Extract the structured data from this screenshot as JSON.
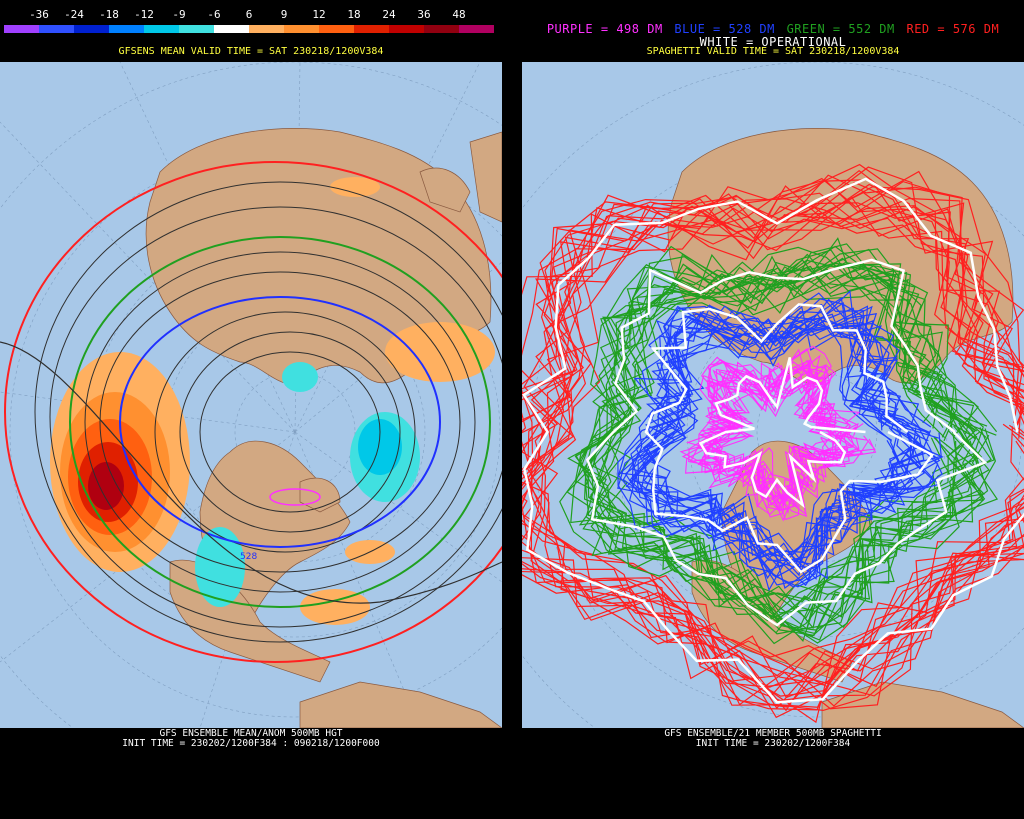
{
  "colorbar": {
    "labels": [
      "-36",
      "-24",
      "-18",
      "-12",
      "-9",
      "-6",
      "6",
      "9",
      "12",
      "18",
      "24",
      "36",
      "48"
    ],
    "colors": [
      "#a040ff",
      "#3050ff",
      "#0020d0",
      "#0080ff",
      "#00c8e8",
      "#40e0e0",
      "#ffffff",
      "#ffb060",
      "#ff9030",
      "#ff6010",
      "#e02000",
      "#c00000",
      "#900010",
      "#b00060"
    ]
  },
  "left": {
    "subtitle": "GFSENS MEAN VALID TIME = SAT 230218/1200V384",
    "footer_line1": "GFS ENSEMBLE MEAN/ANOM 500MB HGT",
    "footer_line2": "INIT TIME = 230202/1200F384 : 090218/1200F000",
    "contour_label_528": "528"
  },
  "right": {
    "legend": [
      {
        "text": "PURPLE = 498 DM",
        "color": "#ff30ff"
      },
      {
        "text": "BLUE = 528 DM",
        "color": "#2040ff"
      },
      {
        "text": "GREEN = 552 DM",
        "color": "#20a020"
      },
      {
        "text": "RED = 576 DM",
        "color": "#ff2020"
      }
    ],
    "legend_white": "WHITE = OPERATIONAL",
    "subtitle": "SPAGHETTI VALID TIME = SAT 230218/1200V384",
    "footer_line1": "GFS ENSEMBLE/21 MEMBER 500MB SPAGHETTI",
    "footer_line2": "INIT TIME = 230202/1200F384"
  },
  "colors": {
    "ocean": "#a8c8e8",
    "land": "#d2a882",
    "subtitle": "#ffff40"
  }
}
